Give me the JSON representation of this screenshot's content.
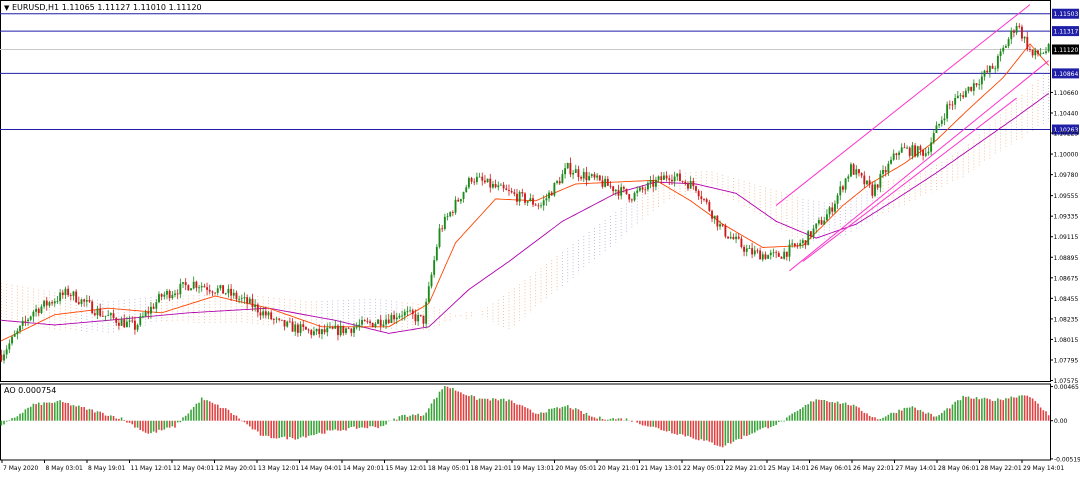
{
  "window": {
    "symbol_info": "EURUSD,H1  1.11065 1.11127 1.11010 1.11120"
  },
  "colors": {
    "bull": "#1a8a1a",
    "bear": "#cc1a1a",
    "ma_fast": "#ff4500",
    "ma_slow": "#b000b0",
    "hline": "#1f1fa8",
    "channel": "#ff33cc",
    "cloud_a": "#f2b48a",
    "cloud_b": "#b6b0d8",
    "ao_up": "#3aa33a",
    "ao_down": "#e04040",
    "grid": "#c8c8c8"
  },
  "chart_data": [
    {
      "type": "candlestick",
      "symbol": "EURUSD",
      "timeframe": "H1",
      "ylim": [
        1.0757,
        1.1165
      ],
      "yticks": [
        "1.11503",
        "1.11317",
        "1.11120",
        "1.10864",
        "1.10660",
        "1.10440",
        "1.10263",
        "1.10225",
        "1.10000",
        "1.09780",
        "1.09555",
        "1.09335",
        "1.09115",
        "1.08895",
        "1.08675",
        "1.08455",
        "1.08235",
        "1.08015",
        "1.07795",
        "1.07575"
      ],
      "xticks": [
        "7 May 2020",
        "8 May 03:01",
        "8 May 19:01",
        "11 May 12:01",
        "12 May 04:01",
        "12 May 20:01",
        "13 May 12:01",
        "14 May 04:01",
        "14 May 20:01",
        "15 May 12:01",
        "18 May 05:01",
        "18 May 21:01",
        "19 May 13:01",
        "20 May 05:01",
        "20 May 21:01",
        "21 May 13:01",
        "22 May 05:01",
        "22 May 21:01",
        "25 May 14:01",
        "26 May 06:01",
        "26 May 22:01",
        "27 May 14:01",
        "28 May 06:01",
        "28 May 22:01",
        "29 May 14:01"
      ],
      "horizontal_levels": [
        {
          "price": 1.11503,
          "label": "1.11503"
        },
        {
          "price": 1.11317,
          "label": "1.11317"
        },
        {
          "price": 1.10864,
          "label": "1.10864"
        },
        {
          "price": 1.10263,
          "label": "1.10263"
        }
      ],
      "current_price": {
        "price": 1.1112,
        "label": "1.11120"
      },
      "close_anchors": [
        [
          0,
          1.0785
        ],
        [
          12,
          1.0832
        ],
        [
          25,
          1.0852
        ],
        [
          38,
          1.0828
        ],
        [
          50,
          1.0815
        ],
        [
          60,
          1.0848
        ],
        [
          72,
          1.0862
        ],
        [
          84,
          1.0852
        ],
        [
          94,
          1.0838
        ],
        [
          104,
          1.0818
        ],
        [
          118,
          1.0808
        ],
        [
          128,
          1.0812
        ],
        [
          140,
          1.082
        ],
        [
          150,
          1.083
        ],
        [
          158,
          1.0822
        ],
        [
          164,
          1.0918
        ],
        [
          176,
          1.0975
        ],
        [
          190,
          1.0958
        ],
        [
          202,
          1.0945
        ],
        [
          212,
          1.0985
        ],
        [
          224,
          1.097
        ],
        [
          236,
          1.0955
        ],
        [
          250,
          1.0978
        ],
        [
          260,
          1.0965
        ],
        [
          270,
          1.0918
        ],
        [
          280,
          1.0895
        ],
        [
          290,
          1.089
        ],
        [
          300,
          1.0905
        ],
        [
          310,
          1.0938
        ],
        [
          318,
          1.0985
        ],
        [
          326,
          1.096
        ],
        [
          336,
          1.1005
        ],
        [
          346,
          1.1002
        ],
        [
          354,
          1.105
        ],
        [
          364,
          1.1075
        ],
        [
          372,
          1.1095
        ],
        [
          380,
          1.114
        ],
        [
          386,
          1.1105
        ],
        [
          392,
          1.1112
        ]
      ],
      "ma_fast_anchors": [
        [
          0,
          1.08
        ],
        [
          20,
          1.0828
        ],
        [
          40,
          1.0835
        ],
        [
          60,
          1.083
        ],
        [
          80,
          1.0848
        ],
        [
          100,
          1.0835
        ],
        [
          120,
          1.0815
        ],
        [
          145,
          1.0815
        ],
        [
          160,
          1.084
        ],
        [
          170,
          1.0905
        ],
        [
          185,
          1.0952
        ],
        [
          200,
          1.095
        ],
        [
          215,
          1.0968
        ],
        [
          230,
          1.097
        ],
        [
          245,
          1.0972
        ],
        [
          258,
          1.095
        ],
        [
          270,
          1.0925
        ],
        [
          285,
          1.09
        ],
        [
          300,
          1.0902
        ],
        [
          315,
          1.0945
        ],
        [
          325,
          1.0968
        ],
        [
          338,
          1.099
        ],
        [
          350,
          1.1015
        ],
        [
          362,
          1.1048
        ],
        [
          375,
          1.1082
        ],
        [
          385,
          1.1118
        ],
        [
          392,
          1.1095
        ]
      ],
      "ma_slow_anchors": [
        [
          0,
          1.0822
        ],
        [
          20,
          1.0817
        ],
        [
          40,
          1.0822
        ],
        [
          70,
          1.083
        ],
        [
          100,
          1.0835
        ],
        [
          125,
          1.0822
        ],
        [
          145,
          1.0808
        ],
        [
          160,
          1.0815
        ],
        [
          175,
          1.0855
        ],
        [
          190,
          1.0885
        ],
        [
          210,
          1.0928
        ],
        [
          230,
          1.0958
        ],
        [
          245,
          1.097
        ],
        [
          260,
          1.0968
        ],
        [
          275,
          1.0958
        ],
        [
          290,
          1.0928
        ],
        [
          305,
          1.091
        ],
        [
          320,
          1.0925
        ],
        [
          335,
          1.0952
        ],
        [
          350,
          1.098
        ],
        [
          365,
          1.101
        ],
        [
          380,
          1.104
        ],
        [
          392,
          1.1065
        ]
      ],
      "cloud_top_anchors": [
        [
          0,
          1.0862
        ],
        [
          20,
          1.0852
        ],
        [
          40,
          1.0842
        ],
        [
          60,
          1.0848
        ],
        [
          90,
          1.085
        ],
        [
          115,
          1.0842
        ],
        [
          140,
          1.0845
        ],
        [
          160,
          1.0838
        ],
        [
          175,
          1.0822
        ],
        [
          190,
          1.0852
        ],
        [
          210,
          1.0895
        ],
        [
          230,
          1.0938
        ],
        [
          248,
          1.0978
        ],
        [
          265,
          1.0982
        ],
        [
          285,
          1.0965
        ],
        [
          300,
          1.0952
        ],
        [
          315,
          1.0945
        ],
        [
          330,
          1.097
        ],
        [
          345,
          1.098
        ],
        [
          360,
          1.1005
        ],
        [
          375,
          1.1045
        ],
        [
          392,
          1.109
        ]
      ],
      "cloud_bottom_anchors": [
        [
          0,
          1.082
        ],
        [
          20,
          1.0812
        ],
        [
          40,
          1.0808
        ],
        [
          60,
          1.082
        ],
        [
          90,
          1.0818
        ],
        [
          115,
          1.0815
        ],
        [
          140,
          1.0812
        ],
        [
          160,
          1.081
        ],
        [
          175,
          1.0832
        ],
        [
          190,
          1.0812
        ],
        [
          210,
          1.0858
        ],
        [
          230,
          1.0905
        ],
        [
          248,
          1.0948
        ],
        [
          265,
          1.0965
        ],
        [
          285,
          1.0932
        ],
        [
          300,
          1.0905
        ],
        [
          315,
          1.0912
        ],
        [
          330,
          1.0935
        ],
        [
          345,
          1.0955
        ],
        [
          360,
          1.0975
        ],
        [
          375,
          1.1005
        ],
        [
          392,
          1.1035
        ]
      ],
      "channel_lines": [
        {
          "from": [
            290,
            1.0945
          ],
          "to": [
            385,
            1.116
          ]
        },
        {
          "from": [
            295,
            1.0875
          ],
          "to": [
            392,
            1.11
          ]
        },
        {
          "from": [
            300,
            1.0885
          ],
          "to": [
            380,
            1.106
          ]
        }
      ]
    },
    {
      "type": "bar",
      "title": "AO 0.000754",
      "ylim": [
        -0.00535,
        0.005
      ],
      "yticks": [
        "0.00465",
        "0.00",
        "-0.005198"
      ],
      "ao_anchors": [
        [
          0,
          -0.0008
        ],
        [
          12,
          0.0022
        ],
        [
          22,
          0.0026
        ],
        [
          34,
          0.0014
        ],
        [
          45,
          0.0003
        ],
        [
          55,
          -0.0018
        ],
        [
          65,
          -0.0008
        ],
        [
          75,
          0.003
        ],
        [
          85,
          0.0014
        ],
        [
          98,
          -0.0022
        ],
        [
          110,
          -0.0024
        ],
        [
          122,
          -0.0015
        ],
        [
          132,
          -0.001
        ],
        [
          142,
          -0.0008
        ],
        [
          150,
          0.0007
        ],
        [
          158,
          0.0008
        ],
        [
          166,
          0.0048
        ],
        [
          178,
          0.003
        ],
        [
          190,
          0.0028
        ],
        [
          200,
          0.001
        ],
        [
          212,
          0.002
        ],
        [
          222,
          0.0004
        ],
        [
          234,
          0.0002
        ],
        [
          245,
          -0.001
        ],
        [
          258,
          -0.0022
        ],
        [
          270,
          -0.0035
        ],
        [
          282,
          -0.0015
        ],
        [
          292,
          -0.0002
        ],
        [
          305,
          0.003
        ],
        [
          318,
          0.0022
        ],
        [
          328,
          0.0002
        ],
        [
          340,
          0.002
        ],
        [
          350,
          0.0005
        ],
        [
          360,
          0.0032
        ],
        [
          372,
          0.0028
        ],
        [
          384,
          0.0036
        ],
        [
          392,
          0.0008
        ]
      ]
    }
  ]
}
